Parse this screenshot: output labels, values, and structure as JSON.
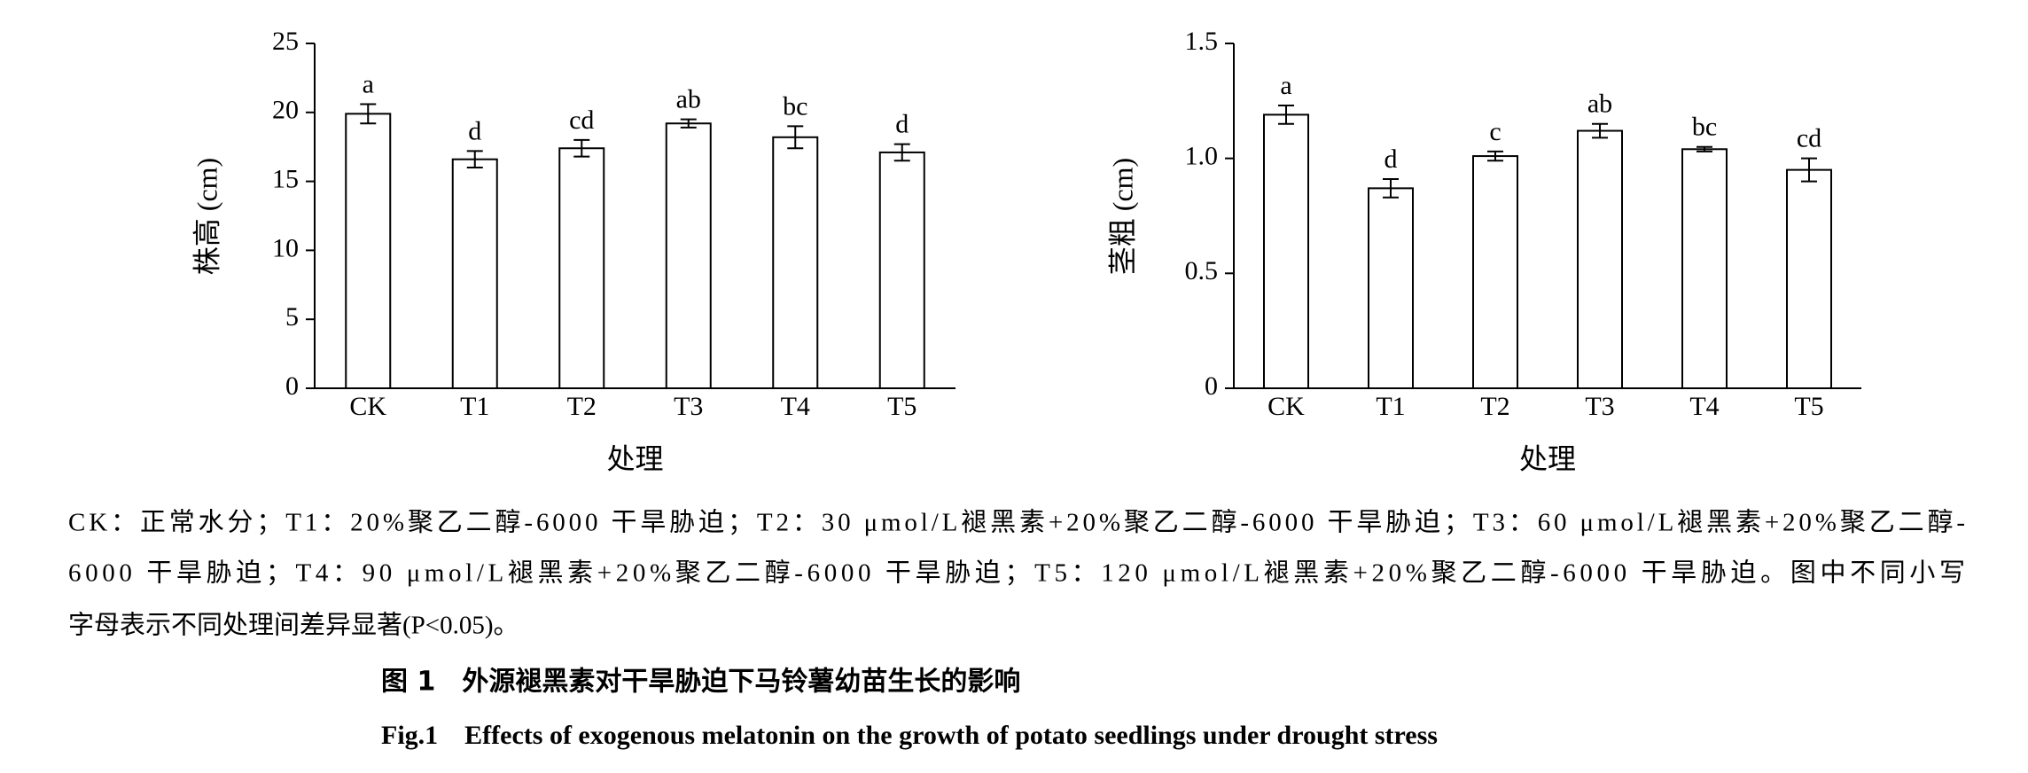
{
  "chart_data": [
    {
      "type": "bar",
      "y_label": "株高 (cm)",
      "x_label": "处理",
      "categories": [
        "CK",
        "T1",
        "T2",
        "T3",
        "T4",
        "T5"
      ],
      "values": [
        19.9,
        16.6,
        17.4,
        19.2,
        18.2,
        17.1
      ],
      "errors": [
        0.7,
        0.6,
        0.6,
        0.3,
        0.8,
        0.6
      ],
      "annotations": [
        "a",
        "d",
        "cd",
        "ab",
        "bc",
        "d"
      ],
      "ylim": [
        0,
        25
      ],
      "yticks": [
        0,
        5,
        10,
        15,
        20,
        25
      ],
      "color": "#ffffff"
    },
    {
      "type": "bar",
      "y_label": "茎粗 (cm)",
      "x_label": "处理",
      "categories": [
        "CK",
        "T1",
        "T2",
        "T3",
        "T4",
        "T5"
      ],
      "values": [
        1.19,
        0.87,
        1.01,
        1.12,
        1.04,
        0.95
      ],
      "errors": [
        0.04,
        0.04,
        0.02,
        0.03,
        0.01,
        0.05
      ],
      "annotations": [
        "a",
        "d",
        "c",
        "ab",
        "bc",
        "cd"
      ],
      "ylim": [
        0,
        1.5
      ],
      "yticks": [
        0,
        0.5,
        {
          "value": 1,
          "label": "1.0"
        },
        1.5
      ],
      "color": "#ffffff"
    }
  ],
  "caption": {
    "lines": [
      "CK：正常水分；T1：20%聚乙二醇-6000 干旱胁迫；T2：30 μmol/L褪黑素+20%聚乙二醇-6000 干旱胁迫；T3：60 μmol/L褪黑素+20%聚乙二醇-",
      "6000 干旱胁迫；T4：90 μmol/L褪黑素+20%聚乙二醇-6000 干旱胁迫；T5：120 μmol/L褪黑素+20%聚乙二醇-6000 干旱胁迫。图中不同小写",
      "字母表示不同处理间差异显著(P<0.05)。"
    ],
    "title_cn": "图 1　外源褪黑素对干旱胁迫下马铃薯幼苗生长的影响",
    "title_en": "Fig.1　Effects of exogenous melatonin on the growth of potato seedlings under drought stress"
  }
}
